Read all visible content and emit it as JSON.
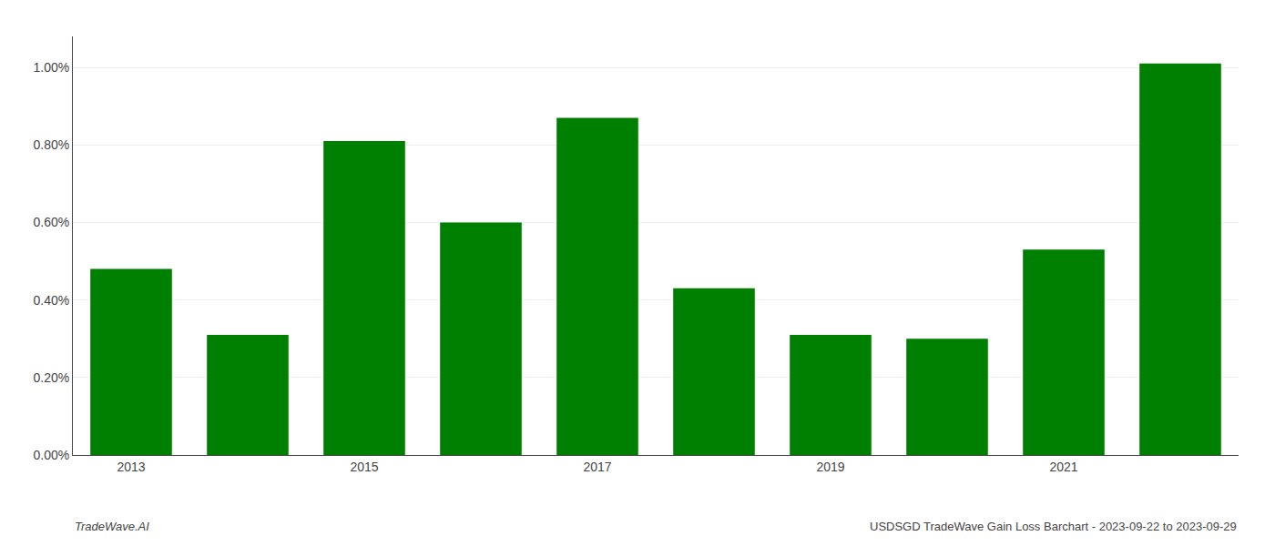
{
  "chart_data": {
    "type": "bar",
    "categories": [
      "2013",
      null,
      "2015",
      null,
      "2017",
      null,
      "2019",
      null,
      "2021",
      null
    ],
    "values": [
      0.0048,
      0.0031,
      0.0081,
      0.006,
      0.0087,
      0.0043,
      0.0031,
      0.003,
      0.0053,
      0.0101
    ],
    "color": "#008000",
    "ylim": [
      0,
      0.0108
    ],
    "yticks": [
      {
        "value": 0.0,
        "label": "0.00%"
      },
      {
        "value": 0.002,
        "label": "0.20%"
      },
      {
        "value": 0.004,
        "label": "0.40%"
      },
      {
        "value": 0.006,
        "label": "0.60%"
      },
      {
        "value": 0.008,
        "label": "0.80%"
      },
      {
        "value": 0.01,
        "label": "1.00%"
      }
    ],
    "grid": true,
    "annotations": [
      "TradeWave.AI",
      "USDSGD TradeWave Gain Loss Barchart - 2023-09-22 to 2023-09-29"
    ]
  }
}
